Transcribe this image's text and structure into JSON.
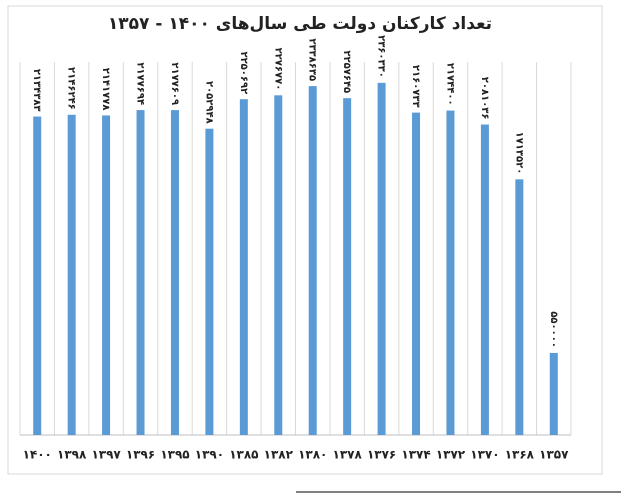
{
  "chart_data": {
    "type": "bar",
    "title": "تعداد کارکنان دولت طی سال‌های ۱۴۰۰ - ۱۳۵۷",
    "categories": [
      "۱۴۰۰",
      "۱۳۹۸",
      "۱۳۹۷",
      "۱۳۹۶",
      "۱۳۹۵",
      "۱۳۹۰",
      "۱۳۸۵",
      "۱۳۸۲",
      "۱۳۸۰",
      "۱۳۷۸",
      "۱۳۷۶",
      "۱۳۷۴",
      "۱۳۷۲",
      "۱۳۷۰",
      "۱۳۶۸",
      "۱۳۵۷"
    ],
    "values": [
      2134383,
      2146246,
      2141778,
      2177694,
      2177609,
      2052948,
      2250692,
      2276770,
      2338635,
      2257645,
      2360330,
      2160733,
      2174400,
      2081036,
      1713520,
      550000
    ],
    "value_labels": [
      "۲۱۳۴۳۸۳",
      "۲۱۴۶۲۴۶",
      "۲۱۴۱۷۷۸",
      "۲۱۷۷۶۹۴",
      "۲۱۷۷۶۰۹",
      "۲۰۵۲۹۴۸",
      "۲۲۵۰۶۹۲",
      "۲۲۷۶۷۷۰",
      "۲۳۳۸۶۳۵",
      "۲۲۵۷۶۴۵",
      "۲۳۶۰۳۳۰",
      "۲۱۶۰۷۳۳",
      "۲۱۷۴۴۰۰",
      "۲۰۸۱۰۳۶",
      "۱۷۱۳۵۲۰",
      "۵۵۰۰۰۰"
    ],
    "color": "#5b9bd5",
    "ylim": [
      0,
      2500000
    ],
    "grid": true
  }
}
